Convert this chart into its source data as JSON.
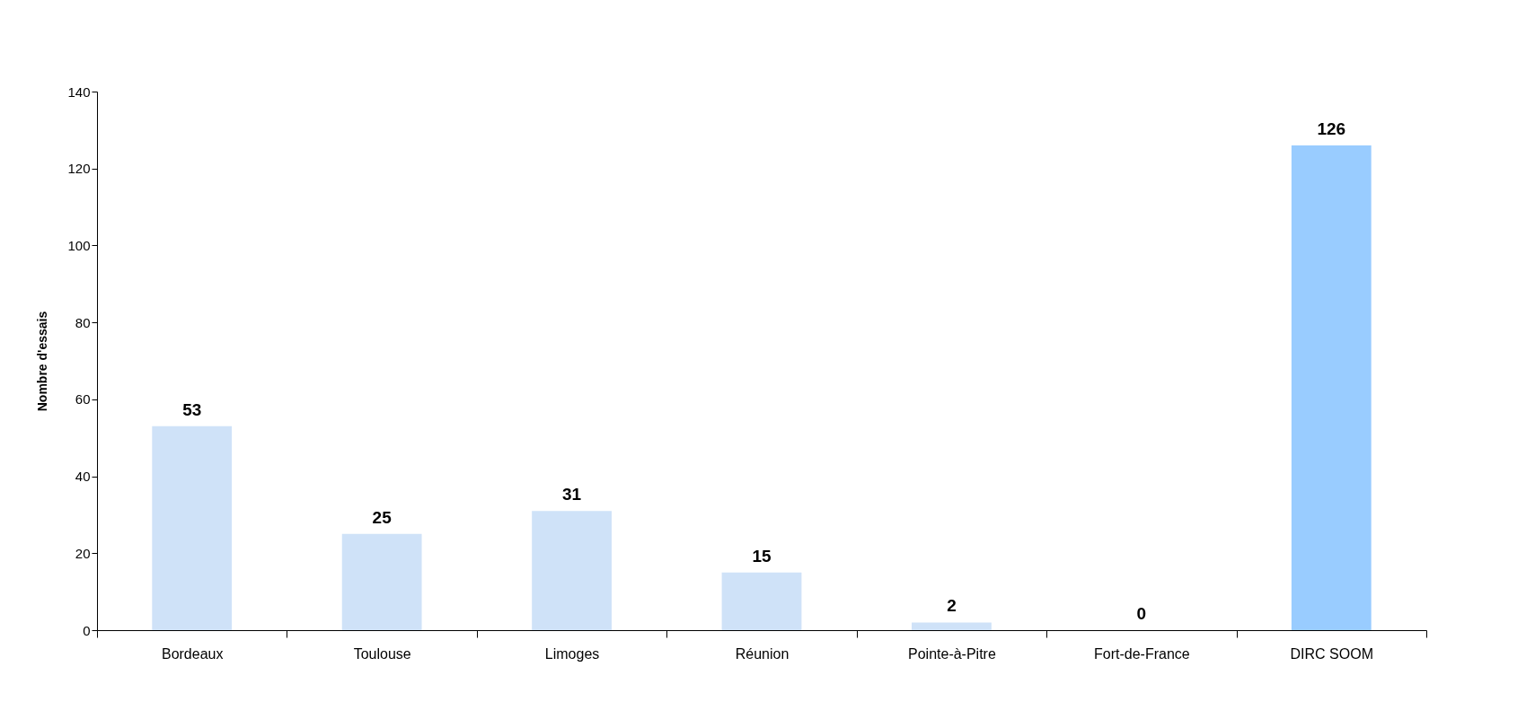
{
  "chart_data": {
    "type": "bar",
    "ylabel": "Nombre d'essais",
    "categories": [
      "Bordeaux",
      "Toulouse",
      "Limoges",
      "Réunion",
      "Pointe-à-Pitre",
      "Fort-de-France",
      "DIRC SOOM"
    ],
    "values": [
      53,
      25,
      31,
      15,
      2,
      0,
      126
    ],
    "colors": [
      "#cfe2f8",
      "#cfe2f8",
      "#cfe2f8",
      "#cfe2f8",
      "#cfe2f8",
      "#cfe2f8",
      "#99ccff"
    ],
    "ylim": [
      0,
      140
    ],
    "yticks": [
      0,
      20,
      40,
      60,
      80,
      100,
      120,
      140
    ],
    "data_labels": true,
    "grid": false
  }
}
